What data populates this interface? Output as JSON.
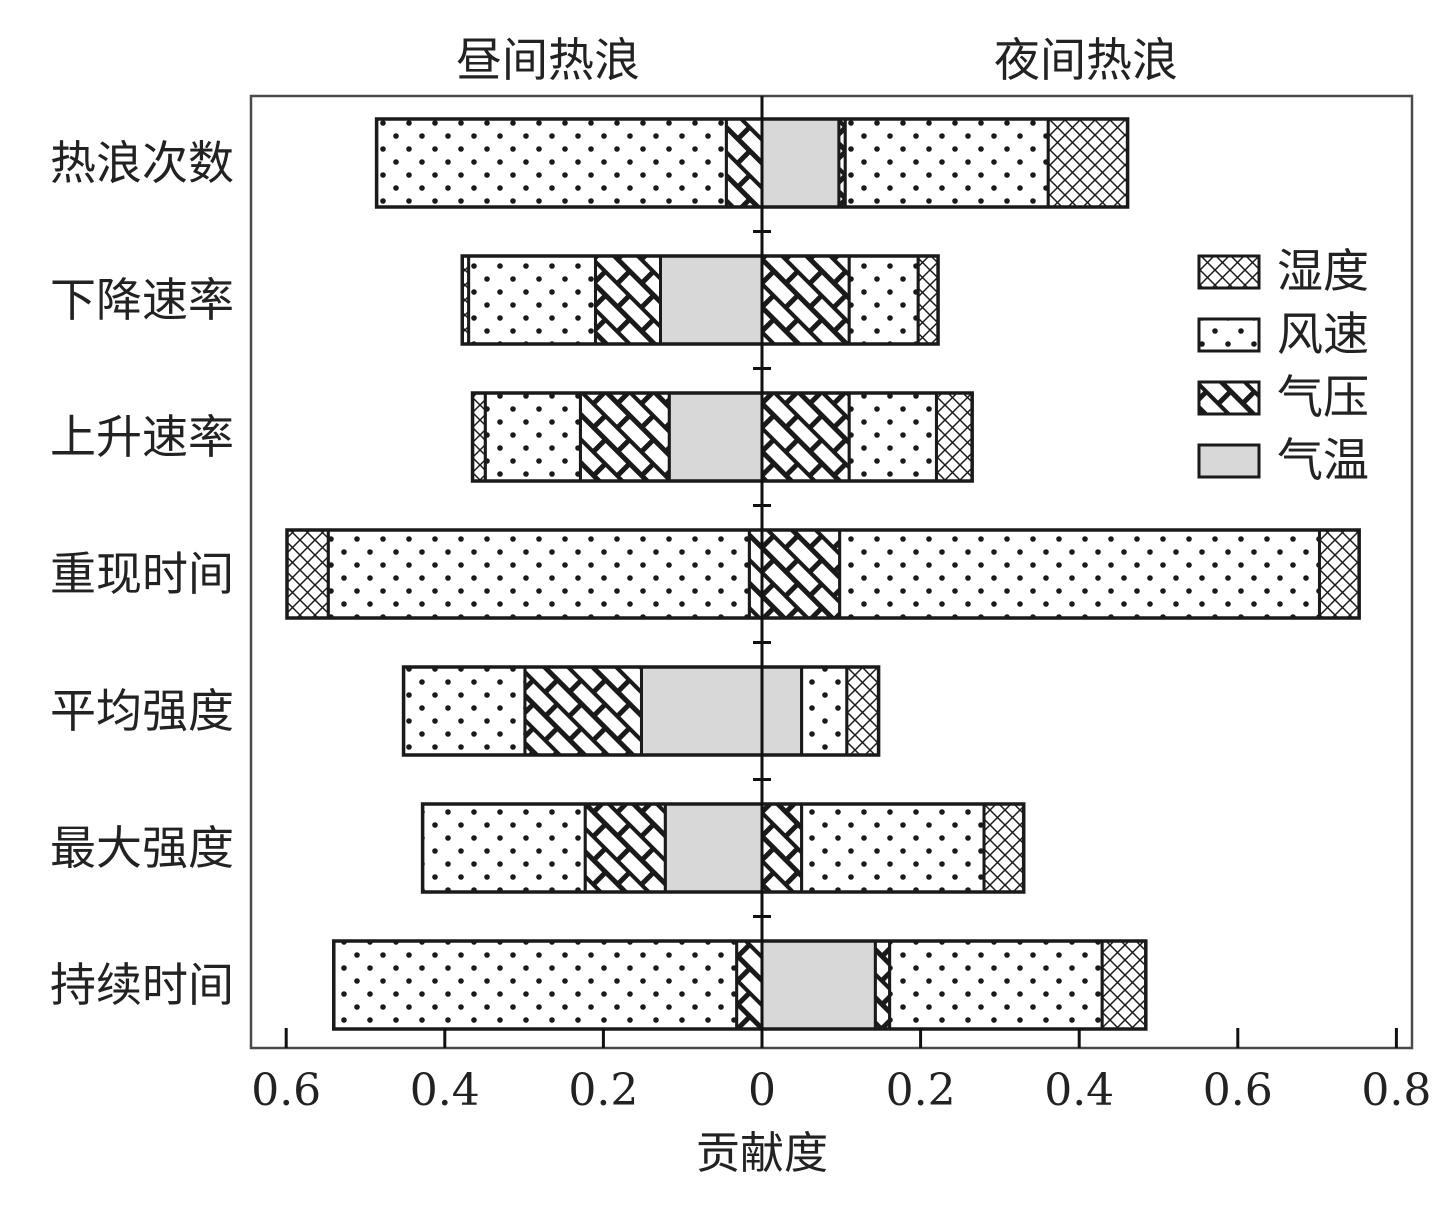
{
  "chart_data": {
    "type": "bar",
    "orientation": "horizontal",
    "stacked": true,
    "diverging": true,
    "panels": [
      {
        "label": "昼间热浪",
        "direction": "left"
      },
      {
        "label": "夜间热浪",
        "direction": "right"
      }
    ],
    "xlabel": "贡献度",
    "ylabel": "",
    "xlim": [
      -0.65,
      0.82
    ],
    "x_ticks": [
      {
        "value": -0.6,
        "label": "0.6"
      },
      {
        "value": -0.4,
        "label": "0.4"
      },
      {
        "value": -0.2,
        "label": "0.2"
      },
      {
        "value": 0,
        "label": "0"
      },
      {
        "value": 0.2,
        "label": "0.2"
      },
      {
        "value": 0.4,
        "label": "0.4"
      },
      {
        "value": 0.6,
        "label": "0.6"
      },
      {
        "value": 0.8,
        "label": "0.8"
      }
    ],
    "categories": [
      "热浪次数",
      "下降速率",
      "上升速率",
      "重现时间",
      "平均强度",
      "最大强度",
      "持续时间"
    ],
    "legend": {
      "position": "right",
      "items": [
        {
          "name": "湿度",
          "pattern": "crosshatch"
        },
        {
          "name": "风速",
          "pattern": "dots"
        },
        {
          "name": "气压",
          "pattern": "brick"
        },
        {
          "name": "气温",
          "pattern": "gray"
        }
      ]
    },
    "series": [
      {
        "name": "气温",
        "pattern": "gray",
        "day": [
          0.0,
          0.128,
          0.117,
          0.0,
          0.152,
          0.122,
          0.0
        ],
        "night": [
          0.097,
          0.0,
          0.0,
          0.0,
          0.05,
          0.0,
          0.143
        ]
      },
      {
        "name": "气压",
        "pattern": "brick",
        "day": [
          0.045,
          0.082,
          0.112,
          0.016,
          0.147,
          0.101,
          0.032
        ],
        "night": [
          0.008,
          0.11,
          0.11,
          0.098,
          0.0,
          0.05,
          0.018
        ]
      },
      {
        "name": "风速",
        "pattern": "dots",
        "day": [
          0.441,
          0.16,
          0.12,
          0.531,
          0.153,
          0.205,
          0.508
        ],
        "night": [
          0.256,
          0.087,
          0.11,
          0.605,
          0.057,
          0.23,
          0.268
        ]
      },
      {
        "name": "湿度",
        "pattern": "crosshatch",
        "day": [
          0.0,
          0.008,
          0.016,
          0.052,
          0.0,
          0.0,
          0.0
        ],
        "night": [
          0.1,
          0.025,
          0.045,
          0.05,
          0.04,
          0.05,
          0.055
        ]
      }
    ]
  }
}
